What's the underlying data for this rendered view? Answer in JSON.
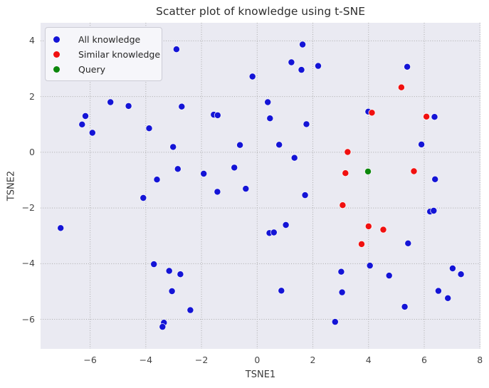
{
  "chart_data": {
    "type": "scatter",
    "title": "Scatter plot of knowledge using t-SNE",
    "xlabel": "TSNE1",
    "ylabel": "TSNE2",
    "xlim": [
      -7.78,
      8.02
    ],
    "ylim": [
      -7.06,
      4.65
    ],
    "x_ticks": [
      -6,
      -4,
      -2,
      0,
      2,
      4,
      6,
      8
    ],
    "x_tick_labels": [
      "−6",
      "−4",
      "−2",
      "0",
      "2",
      "4",
      "6",
      "8"
    ],
    "y_ticks": [
      4,
      2,
      0,
      -2,
      -4,
      -6
    ],
    "y_tick_labels": [
      "4",
      "2",
      "0",
      "−2",
      "−4",
      "−6"
    ],
    "grid": "dotted",
    "grid_color": "#ababab",
    "plot_bg_color": "#eaeaf2",
    "legend_position": "upper left",
    "marker_edge_color": "#ffffff",
    "series": [
      {
        "name": "All knowledge",
        "color": "#1414d6",
        "points": [
          [
            -2.9,
            3.7
          ],
          [
            -5.27,
            1.8
          ],
          [
            -4.62,
            1.66
          ],
          [
            -6.17,
            1.3
          ],
          [
            -6.29,
            1.0
          ],
          [
            -5.92,
            0.7
          ],
          [
            -3.88,
            0.86
          ],
          [
            -2.71,
            1.64
          ],
          [
            -1.56,
            1.35
          ],
          [
            -1.42,
            1.33
          ],
          [
            -0.62,
            0.26
          ],
          [
            -3.02,
            0.19
          ],
          [
            -2.85,
            -0.6
          ],
          [
            -3.6,
            -0.98
          ],
          [
            -1.92,
            -0.77
          ],
          [
            -0.82,
            -0.55
          ],
          [
            1.63,
            3.87
          ],
          [
            1.23,
            3.23
          ],
          [
            1.59,
            2.96
          ],
          [
            2.19,
            3.1
          ],
          [
            -0.17,
            2.72
          ],
          [
            0.38,
            1.8
          ],
          [
            0.46,
            1.22
          ],
          [
            1.77,
            1.01
          ],
          [
            0.79,
            0.27
          ],
          [
            1.34,
            -0.2
          ],
          [
            5.39,
            3.07
          ],
          [
            3.99,
            1.46
          ],
          [
            6.37,
            1.27
          ],
          [
            5.9,
            0.28
          ],
          [
            6.39,
            -0.97
          ],
          [
            -4.09,
            -1.64
          ],
          [
            -7.06,
            -2.72
          ],
          [
            -3.71,
            -4.02
          ],
          [
            -3.16,
            -4.26
          ],
          [
            -2.76,
            -4.38
          ],
          [
            -3.06,
            -4.99
          ],
          [
            -2.4,
            -5.67
          ],
          [
            -3.35,
            -6.12
          ],
          [
            -3.4,
            -6.27
          ],
          [
            -1.43,
            -1.42
          ],
          [
            -0.41,
            -1.31
          ],
          [
            1.72,
            -1.54
          ],
          [
            1.03,
            -2.61
          ],
          [
            0.44,
            -2.9
          ],
          [
            0.6,
            -2.88
          ],
          [
            0.87,
            -4.97
          ],
          [
            6.21,
            -2.13
          ],
          [
            6.34,
            -2.1
          ],
          [
            5.42,
            -3.27
          ],
          [
            4.05,
            -4.07
          ],
          [
            3.02,
            -4.29
          ],
          [
            4.74,
            -4.43
          ],
          [
            7.02,
            -4.17
          ],
          [
            7.32,
            -4.38
          ],
          [
            3.05,
            -5.03
          ],
          [
            6.51,
            -4.98
          ],
          [
            6.85,
            -5.24
          ],
          [
            5.3,
            -5.55
          ],
          [
            2.8,
            -6.09
          ]
        ]
      },
      {
        "name": "Similar knowledge",
        "color": "#f01010",
        "points": [
          [
            5.18,
            2.33
          ],
          [
            4.12,
            1.42
          ],
          [
            6.08,
            1.28
          ],
          [
            3.25,
            0.01
          ],
          [
            3.17,
            -0.75
          ],
          [
            5.63,
            -0.68
          ],
          [
            3.07,
            -1.9
          ],
          [
            4.0,
            -2.66
          ],
          [
            4.53,
            -2.78
          ],
          [
            3.75,
            -3.3
          ]
        ]
      },
      {
        "name": "Query",
        "color": "#0c870c",
        "points": [
          [
            3.98,
            -0.69
          ]
        ]
      }
    ]
  }
}
